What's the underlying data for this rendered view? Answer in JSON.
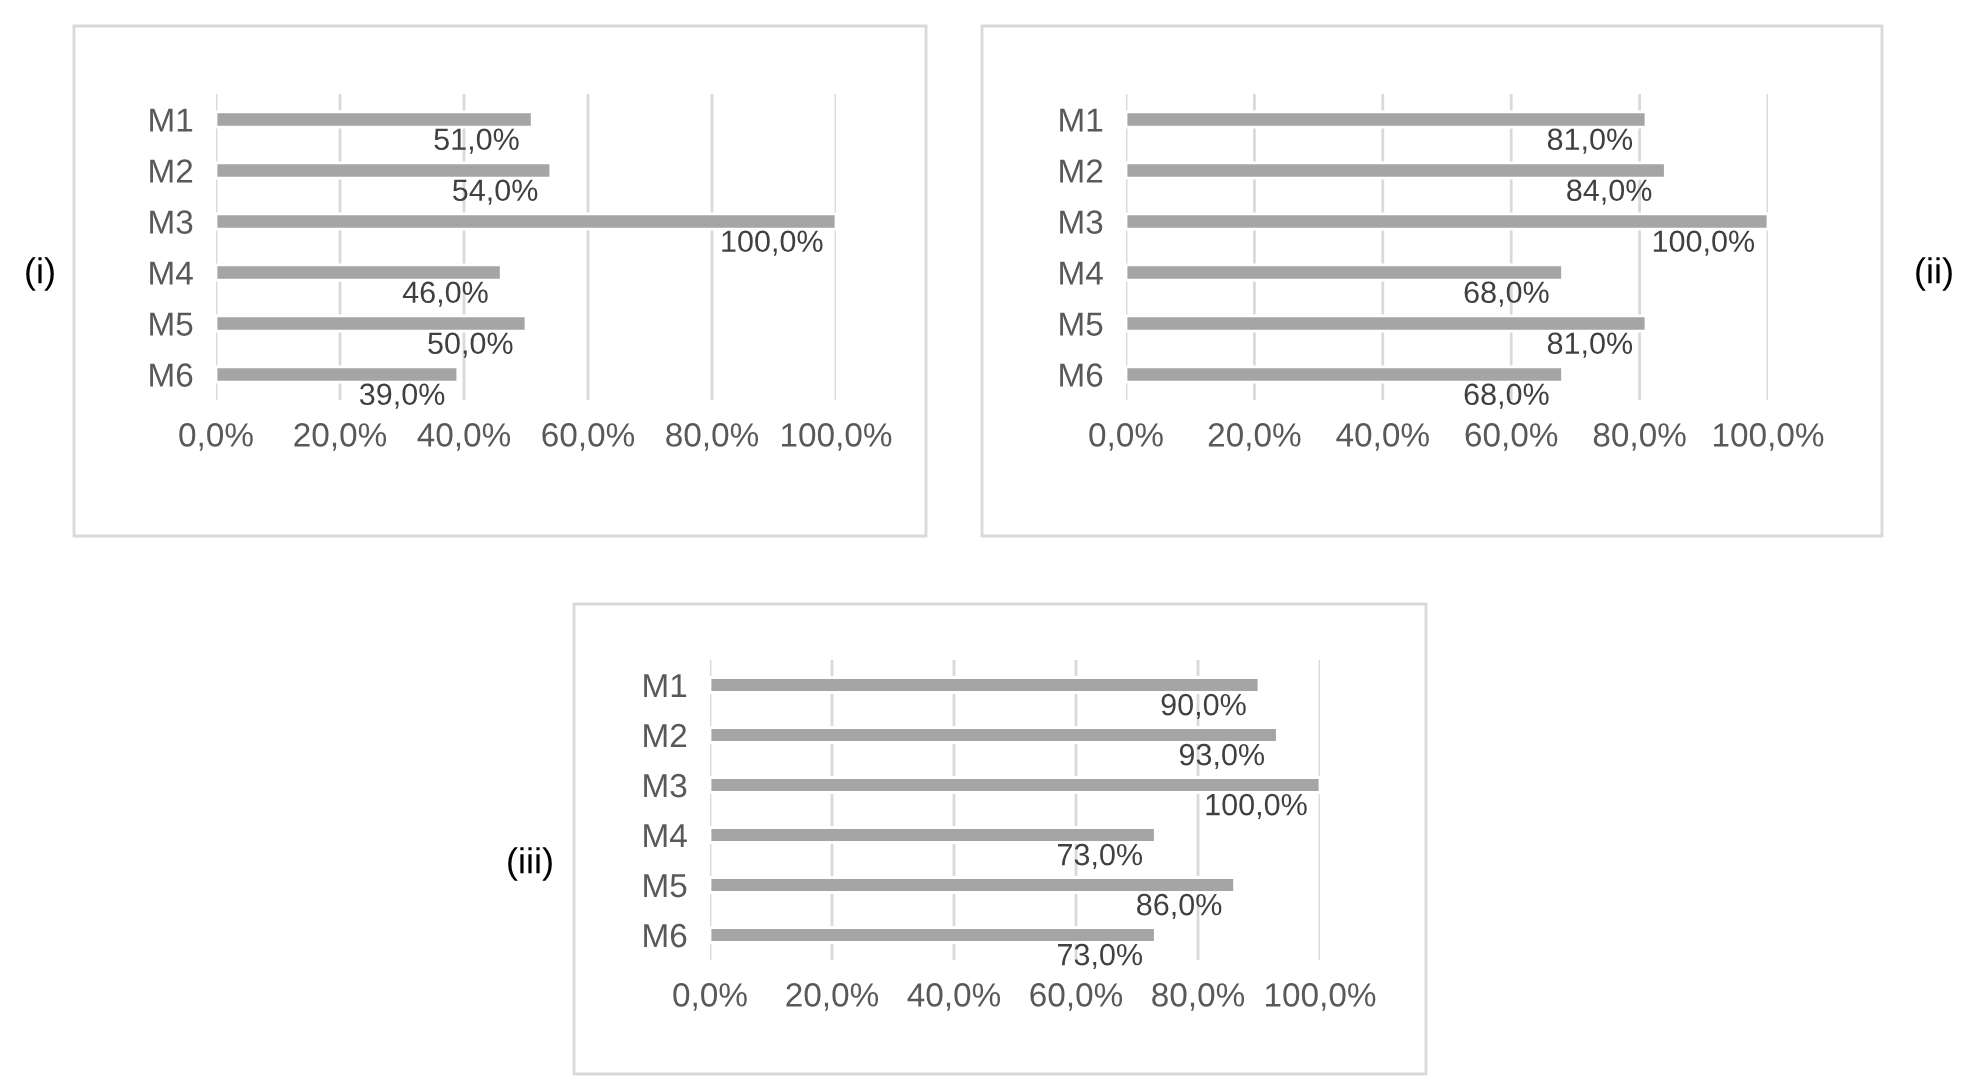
{
  "chart_data": [
    {
      "type": "bar",
      "orientation": "horizontal",
      "categories": [
        "M1",
        "M2",
        "M3",
        "M4",
        "M5",
        "M6"
      ],
      "values": [
        51,
        54,
        100,
        46,
        50,
        39
      ],
      "value_labels": [
        "51,0%",
        "54,0%",
        "100,0%",
        "46,0%",
        "50,0%",
        "39,0%"
      ],
      "color": "#a5a5a5",
      "xlim": [
        0,
        100
      ],
      "xticks": [
        {
          "value": 0,
          "label": "0,0%"
        },
        {
          "value": 20,
          "label": "20,0%"
        },
        {
          "value": 40,
          "label": "40,0%"
        },
        {
          "value": 60,
          "label": "60,0%"
        },
        {
          "value": 80,
          "label": "80,0%"
        },
        {
          "value": 100,
          "label": "100,0%"
        }
      ],
      "grid": "x",
      "annotations": [
        "(i)"
      ]
    },
    {
      "type": "bar",
      "orientation": "horizontal",
      "categories": [
        "M1",
        "M2",
        "M3",
        "M4",
        "M5",
        "M6"
      ],
      "values": [
        81,
        84,
        100,
        68,
        81,
        68
      ],
      "value_labels": [
        "81,0%",
        "84,0%",
        "100,0%",
        "68,0%",
        "81,0%",
        "68,0%"
      ],
      "color": "#a5a5a5",
      "xlim": [
        0,
        100
      ],
      "xticks": [
        {
          "value": 0,
          "label": "0,0%"
        },
        {
          "value": 20,
          "label": "20,0%"
        },
        {
          "value": 40,
          "label": "40,0%"
        },
        {
          "value": 60,
          "label": "60,0%"
        },
        {
          "value": 80,
          "label": "80,0%"
        },
        {
          "value": 100,
          "label": "100,0%"
        }
      ],
      "grid": "x",
      "annotations": [
        "(ii)"
      ]
    },
    {
      "type": "bar",
      "orientation": "horizontal",
      "categories": [
        "M1",
        "M2",
        "M3",
        "M4",
        "M5",
        "M6"
      ],
      "values": [
        90,
        93,
        100,
        73,
        86,
        73
      ],
      "value_labels": [
        "90,0%",
        "93,0%",
        "100,0%",
        "73,0%",
        "86,0%",
        "73,0%"
      ],
      "color": "#a5a5a5",
      "xlim": [
        0,
        100
      ],
      "xticks": [
        {
          "value": 0,
          "label": "0,0%"
        },
        {
          "value": 20,
          "label": "20,0%"
        },
        {
          "value": 40,
          "label": "40,0%"
        },
        {
          "value": 60,
          "label": "60,0%"
        },
        {
          "value": 80,
          "label": "80,0%"
        },
        {
          "value": 100,
          "label": "100,0%"
        }
      ],
      "grid": "x",
      "annotations": [
        "(iii)"
      ]
    }
  ]
}
